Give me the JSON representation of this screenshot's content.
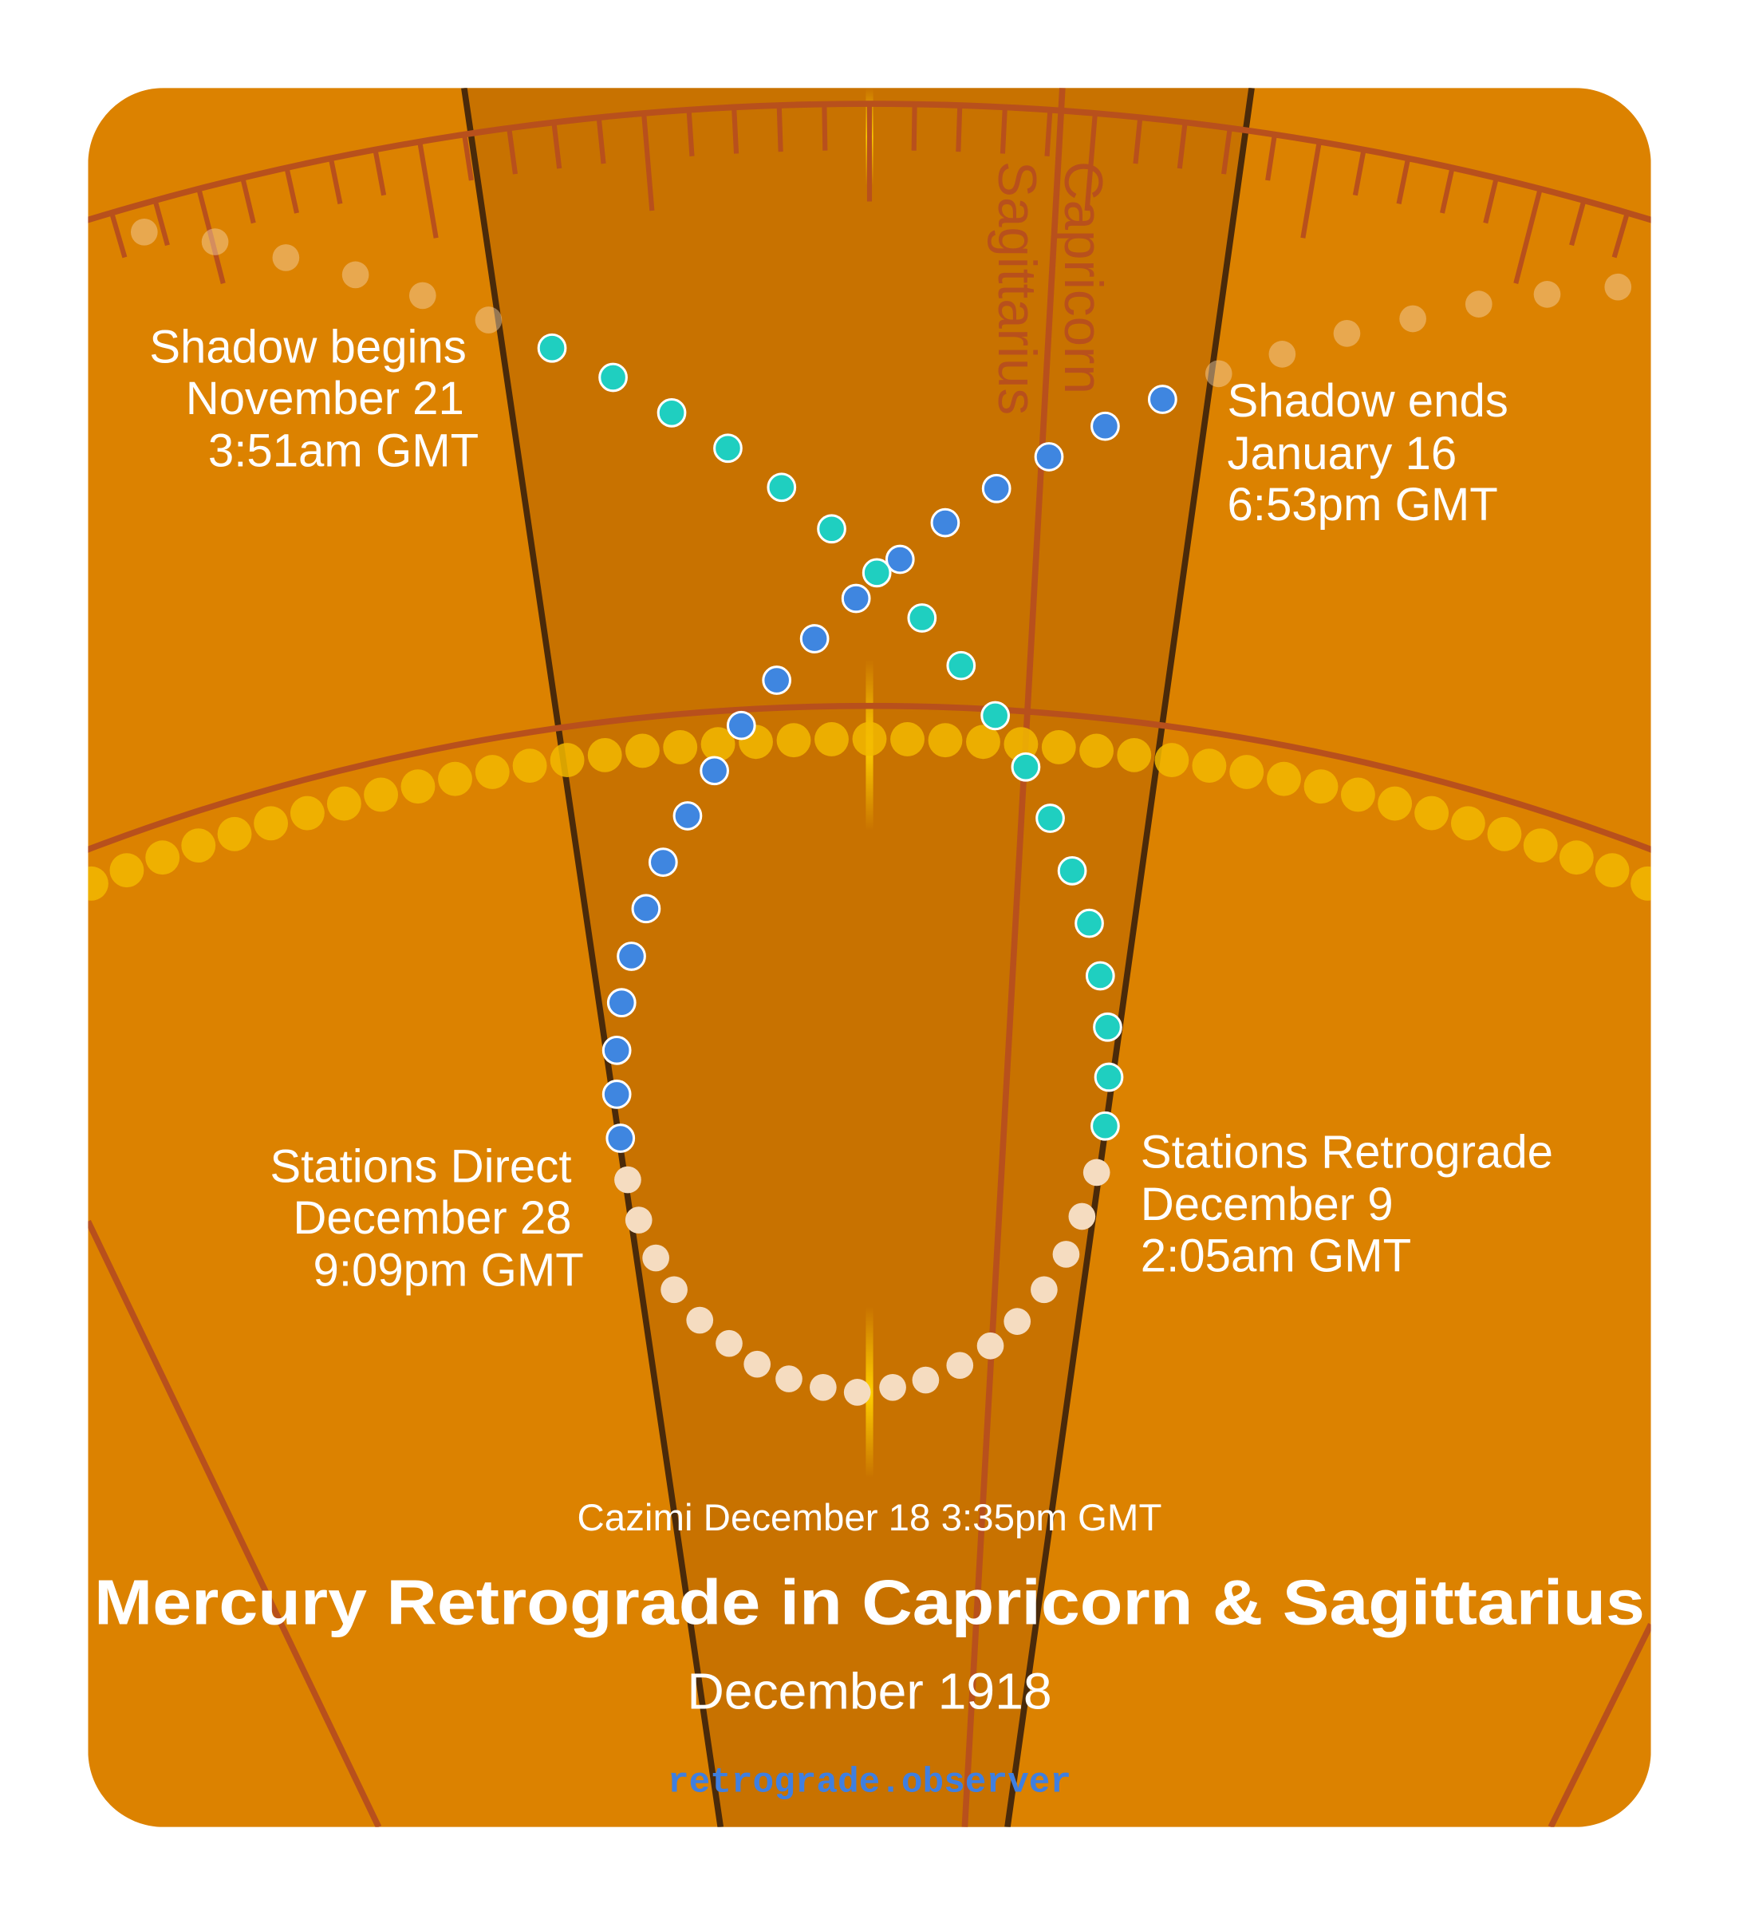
{
  "zodiac": [
    "Capricorn",
    "Sagittarius"
  ],
  "events": {
    "shadow_begins": [
      "Shadow begins",
      "November 21",
      "3:51am GMT"
    ],
    "shadow_ends": [
      "Shadow ends",
      "January 16",
      "6:53pm GMT"
    ],
    "stations_direct": [
      "Stations Direct",
      "December 28",
      "9:09pm GMT"
    ],
    "stations_retrograde": [
      "Stations Retrograde",
      "December 9",
      "2:05am GMT"
    ]
  },
  "cazimi": "Cazimi December 18 3:35pm GMT",
  "title": "Mercury Retrograde in Capricorn & Sagittarius",
  "subtitle": "December 1918",
  "site": "retrograde.observer"
}
